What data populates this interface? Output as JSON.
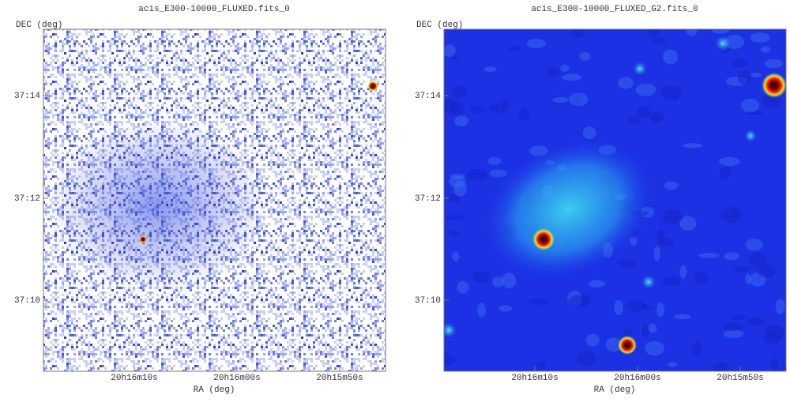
{
  "panels": [
    {
      "title": "acis_E300-10000_FLUXED.fits_0",
      "xlabel": "RA (deg)",
      "ylabel": "DEC (deg)",
      "xticks": [
        "20h16m10s",
        "20h16m00s",
        "20h15m50s"
      ],
      "yticks": [
        "37:14",
        "37:12",
        "37:10"
      ]
    },
    {
      "title": "acis_E300-10000_FLUXED_G2.fits_0",
      "xlabel": "RA (deg)",
      "ylabel": "DEC (deg)",
      "xticks": [
        "20h16m10s",
        "20h16m00s",
        "20h15m50s"
      ],
      "yticks": [
        "37:14",
        "37:12",
        "37:10"
      ]
    }
  ]
}
